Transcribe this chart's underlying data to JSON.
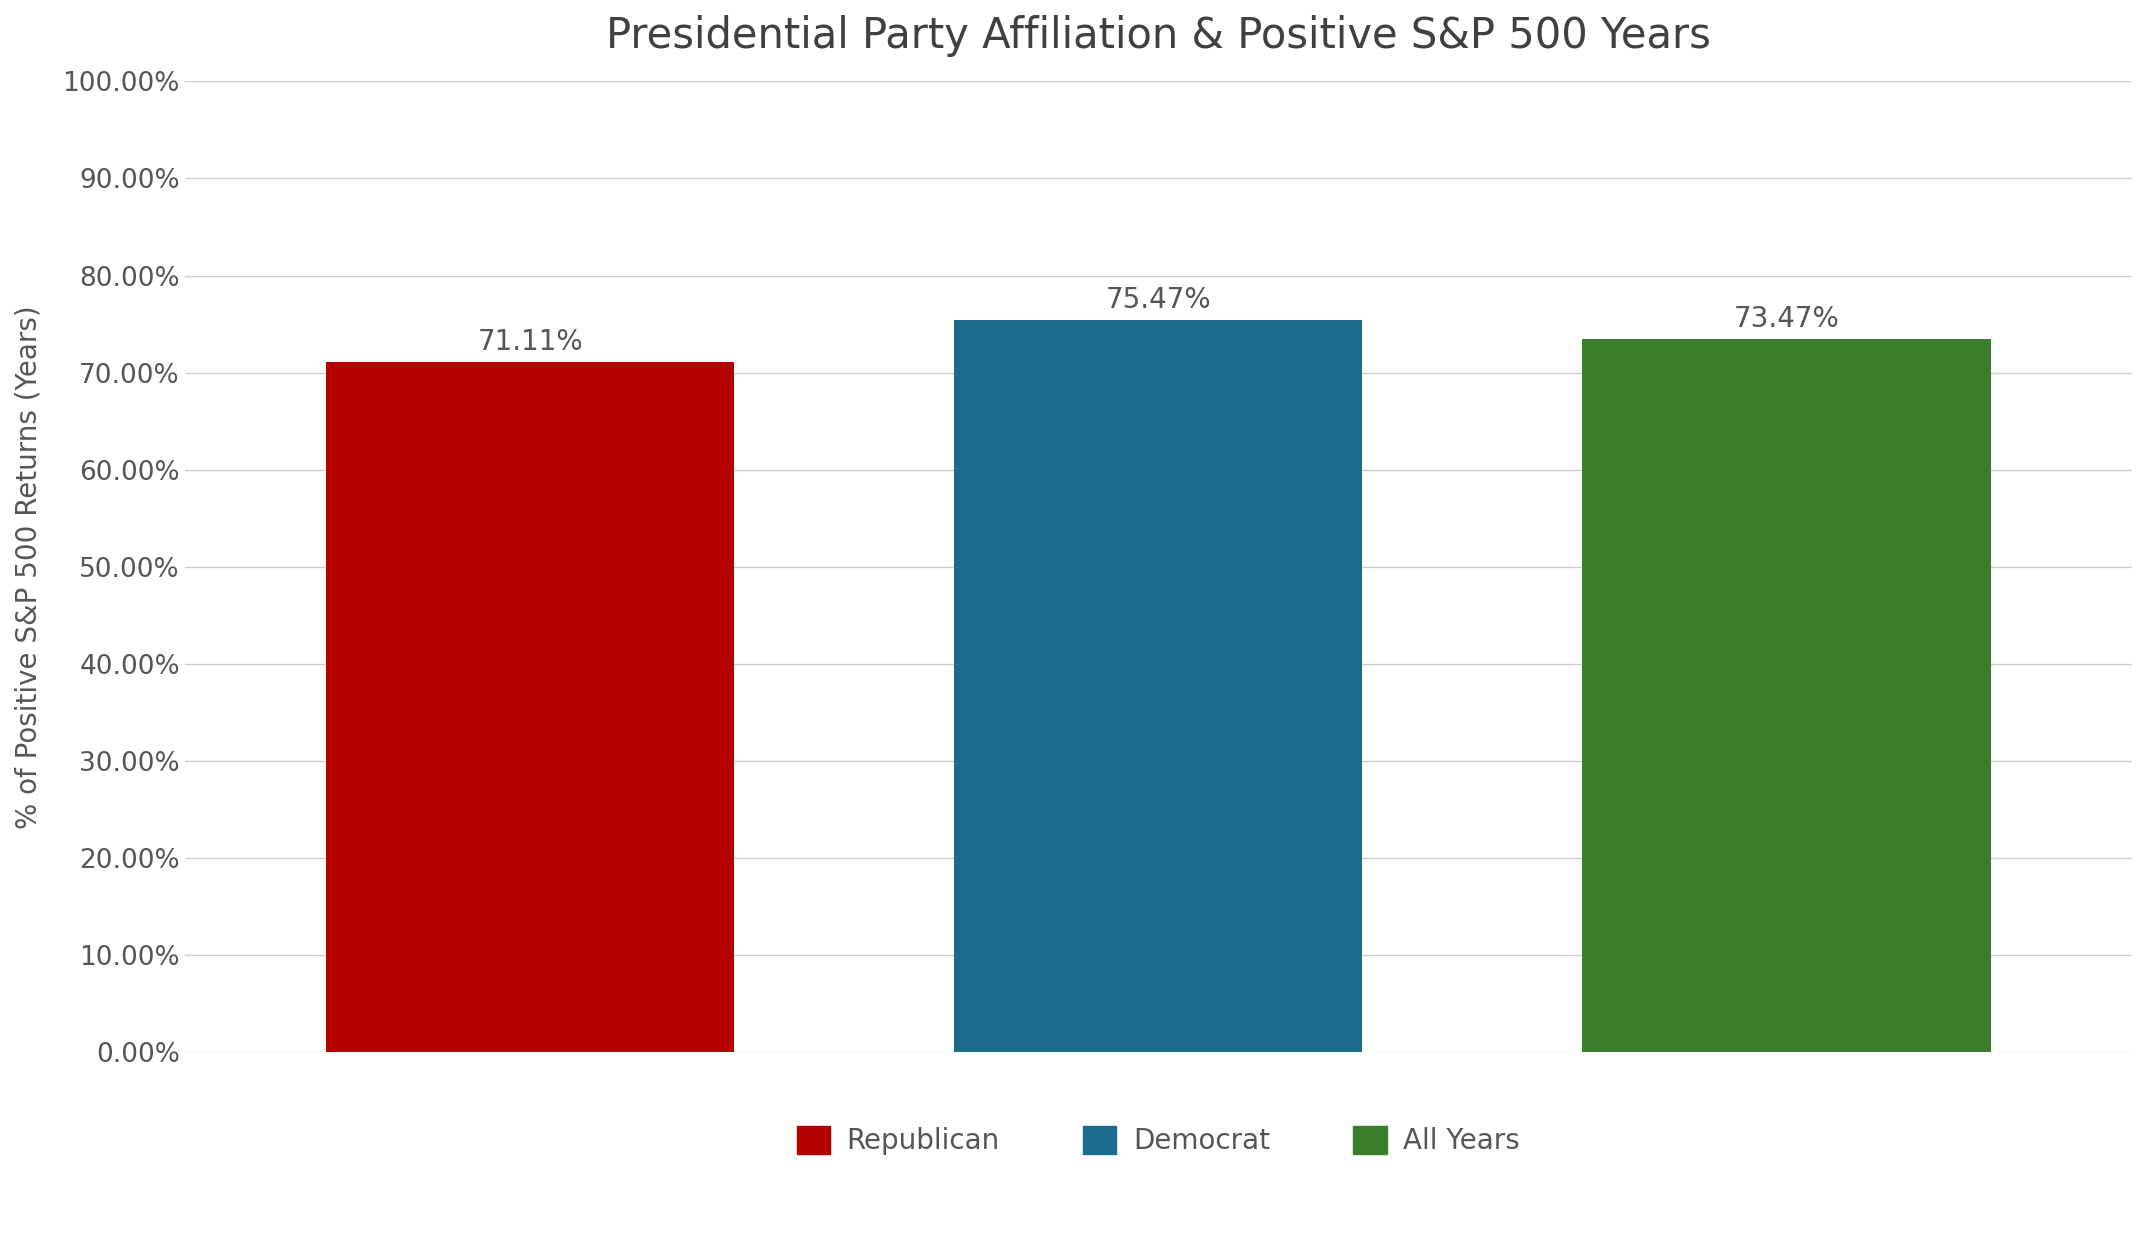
{
  "categories": [
    "Republican",
    "Democrat",
    "All Years"
  ],
  "values": [
    71.11,
    75.47,
    73.47
  ],
  "bar_colors": [
    "#B50000",
    "#1B6B8A",
    "#3A7D2C"
  ],
  "title": "Presidential Party Affiliation & Positive S&P 500 Years",
  "ylabel": "% of Positive S&P 500 Returns (Years)",
  "ylim": [
    0,
    100
  ],
  "yticks": [
    0,
    10,
    20,
    30,
    40,
    50,
    60,
    70,
    80,
    90,
    100
  ],
  "ytick_labels": [
    "0.00%",
    "10.00%",
    "20.00%",
    "30.00%",
    "40.00%",
    "50.00%",
    "60.00%",
    "70.00%",
    "80.00%",
    "90.00%",
    "100.00%"
  ],
  "bar_labels": [
    "71.11%",
    "75.47%",
    "73.47%"
  ],
  "legend_labels": [
    "Republican",
    "Democrat",
    "All Years"
  ],
  "background_color": "#ffffff",
  "title_fontsize": 30,
  "label_fontsize": 20,
  "tick_fontsize": 19,
  "bar_label_fontsize": 20,
  "legend_fontsize": 20
}
